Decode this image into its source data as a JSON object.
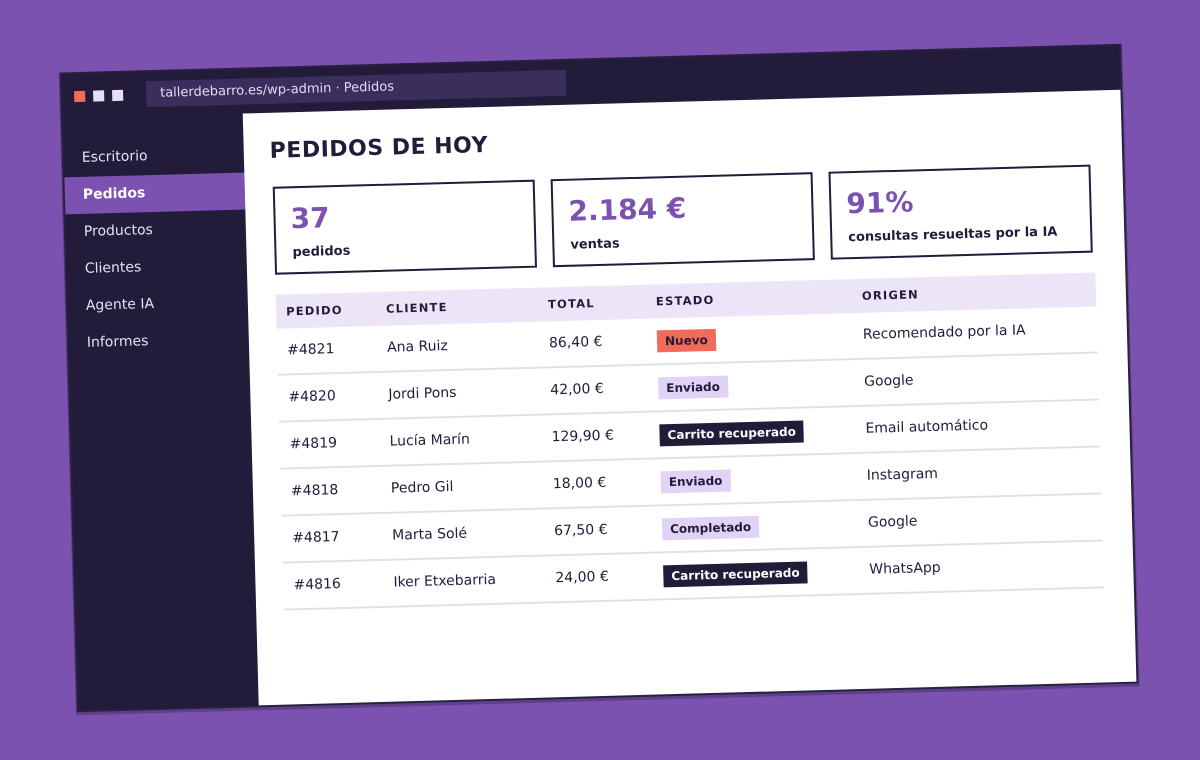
{
  "browser": {
    "url": "tallerdebarro.es/wp-admin · Pedidos"
  },
  "sidebar": {
    "items": [
      {
        "label": "Escritorio",
        "active": false
      },
      {
        "label": "Pedidos",
        "active": true
      },
      {
        "label": "Productos",
        "active": false
      },
      {
        "label": "Clientes",
        "active": false
      },
      {
        "label": "Agente IA",
        "active": false
      },
      {
        "label": "Informes",
        "active": false
      }
    ]
  },
  "main": {
    "title": "PEDIDOS DE HOY",
    "kpis": [
      {
        "value": "37",
        "label": "pedidos"
      },
      {
        "value": "2.184 €",
        "label": "ventas"
      },
      {
        "value": "91%",
        "label": "consultas resueltas por la IA"
      }
    ],
    "table": {
      "headers": [
        "PEDIDO",
        "CLIENTE",
        "TOTAL",
        "ESTADO",
        "ORIGEN"
      ],
      "rows": [
        {
          "pedido": "#4821",
          "cliente": "Ana Ruiz",
          "total": "86,40 €",
          "estado": "Nuevo",
          "estado_tipo": "nuevo",
          "origen": "Recomendado por la IA"
        },
        {
          "pedido": "#4820",
          "cliente": "Jordi Pons",
          "total": "42,00 €",
          "estado": "Enviado",
          "estado_tipo": "enviado",
          "origen": "Google"
        },
        {
          "pedido": "#4819",
          "cliente": "Lucía Marín",
          "total": "129,90 €",
          "estado": "Carrito recuperado",
          "estado_tipo": "carrito",
          "origen": "Email automático"
        },
        {
          "pedido": "#4818",
          "cliente": "Pedro Gil",
          "total": "18,00 €",
          "estado": "Enviado",
          "estado_tipo": "enviado",
          "origen": "Instagram"
        },
        {
          "pedido": "#4817",
          "cliente": "Marta Solé",
          "total": "67,50 €",
          "estado": "Completado",
          "estado_tipo": "completado",
          "origen": "Google"
        },
        {
          "pedido": "#4816",
          "cliente": "Iker Etxebarria",
          "total": "24,00 €",
          "estado": "Carrito recuperado",
          "estado_tipo": "carrito",
          "origen": "WhatsApp"
        }
      ]
    }
  },
  "colors": {
    "background": "#7b52b0",
    "dark": "#231b3a",
    "accent": "#7b52b0",
    "status_nuevo": "#f26b5a",
    "status_light": "#e0d3f5",
    "header_row": "#ece5f8"
  }
}
